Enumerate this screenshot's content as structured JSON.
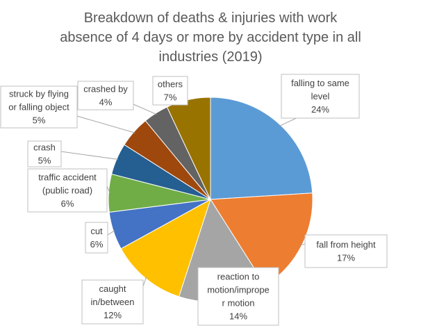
{
  "chart_data": {
    "type": "pie",
    "title_lines": [
      "Breakdown of deaths & injuries with work",
      "absence of 4 days or more by accident type in all",
      "industries (2019)"
    ],
    "slices": [
      {
        "label_lines": [
          "falling to same",
          "level"
        ],
        "value": 24,
        "display": "24%",
        "color": "#5b9bd5"
      },
      {
        "label_lines": [
          "fall from height"
        ],
        "value": 17,
        "display": "17%",
        "color": "#ed7d31"
      },
      {
        "label_lines": [
          "reaction to",
          "motion/imprope",
          "r motion"
        ],
        "value": 14,
        "display": "14%",
        "color": "#a5a5a5"
      },
      {
        "label_lines": [
          "caught",
          "in/between"
        ],
        "value": 12,
        "display": "12%",
        "color": "#ffc000"
      },
      {
        "label_lines": [
          "cut"
        ],
        "value": 6,
        "display": "6%",
        "color": "#4472c4"
      },
      {
        "label_lines": [
          "traffic accident",
          "(public road)"
        ],
        "value": 6,
        "display": "6%",
        "color": "#70ad47"
      },
      {
        "label_lines": [
          "crash"
        ],
        "value": 5,
        "display": "5%",
        "color": "#255e91"
      },
      {
        "label_lines": [
          "struck by flying",
          "or falling object"
        ],
        "value": 5,
        "display": "5%",
        "color": "#9e480e"
      },
      {
        "label_lines": [
          "crashed by"
        ],
        "value": 4,
        "display": "4%",
        "color": "#636363"
      },
      {
        "label_lines": [
          "others"
        ],
        "value": 7,
        "display": "7%",
        "color": "#997300"
      }
    ],
    "start_angle_deg": 0,
    "direction": "clockwise"
  }
}
